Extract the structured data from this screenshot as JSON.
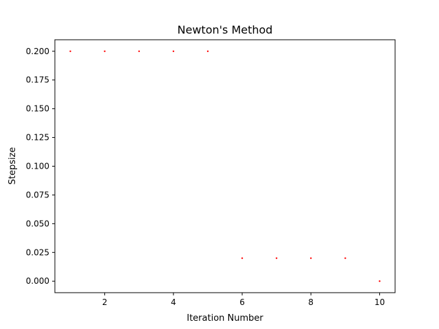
{
  "chart_data": {
    "type": "scatter",
    "title": "Newton's Method",
    "xlabel": "Iteration Number",
    "ylabel": "Stepsize",
    "xlim": [
      0.55,
      10.45
    ],
    "ylim": [
      -0.01,
      0.21
    ],
    "xticks": [
      2,
      4,
      6,
      8,
      10
    ],
    "xtick_labels": [
      "2",
      "4",
      "6",
      "8",
      "10"
    ],
    "yticks": [
      0.0,
      0.025,
      0.05,
      0.075,
      0.1,
      0.125,
      0.15,
      0.175,
      0.2
    ],
    "ytick_labels": [
      "0.000",
      "0.025",
      "0.050",
      "0.075",
      "0.100",
      "0.125",
      "0.150",
      "0.175",
      "0.200"
    ],
    "grid": false,
    "marker_color": "#ff0000",
    "series": [
      {
        "x": [
          1,
          2,
          3,
          4,
          5,
          6,
          7,
          8,
          9,
          10
        ],
        "y": [
          0.2,
          0.2,
          0.2,
          0.2,
          0.2,
          0.02,
          0.02,
          0.02,
          0.02,
          0.0
        ]
      }
    ]
  }
}
